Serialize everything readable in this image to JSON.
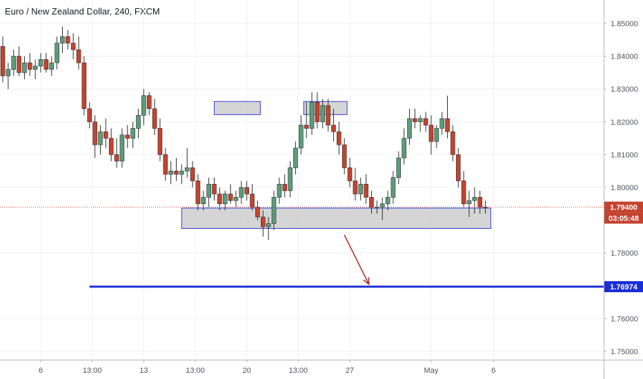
{
  "title": "Euro / New Zealand Dollar, 240, FXCM",
  "colors": {
    "up": "#5b9c7a",
    "down": "#c4432f",
    "grid": "#eef0f3",
    "axis_text": "#50535e",
    "box_stroke": "#2f3bd0",
    "box_fill": "#c7c7c7",
    "target_line": "#1b2ed6",
    "price_line": "#c4432f",
    "arrow": "#a52a1e"
  },
  "chart_data": {
    "type": "candlestick",
    "title": "Euro / New Zealand Dollar, 240, FXCM",
    "ylim": [
      1.7475,
      1.8565
    ],
    "y_ticks": [
      "1.85000",
      "1.84000",
      "1.83000",
      "1.82000",
      "1.81000",
      "1.80000",
      "1.78000",
      "1.76000",
      "1.75000"
    ],
    "y_tick_values": [
      1.85,
      1.84,
      1.83,
      1.82,
      1.81,
      1.8,
      1.78,
      1.76,
      1.75
    ],
    "x_ticks": [
      "6",
      "13:00",
      "13",
      "13:00",
      "20",
      "13:00",
      "27",
      "May",
      "6"
    ],
    "x_tick_bars": [
      14,
      33,
      52,
      71,
      90,
      109,
      128,
      158,
      181
    ],
    "bar_count": 200,
    "grid": true,
    "current_price": "1.79400",
    "current_price_value": 1.794,
    "countdown": "03:05:48",
    "target_level": "1.76974",
    "target_value": 1.76974,
    "candles": [
      [
        1.843,
        1.846,
        1.832,
        1.834
      ],
      [
        1.834,
        1.838,
        1.83,
        1.836
      ],
      [
        1.836,
        1.842,
        1.834,
        1.84
      ],
      [
        1.84,
        1.843,
        1.834,
        1.835
      ],
      [
        1.835,
        1.84,
        1.833,
        1.838
      ],
      [
        1.838,
        1.841,
        1.834,
        1.836
      ],
      [
        1.836,
        1.839,
        1.833,
        1.837
      ],
      [
        1.837,
        1.841,
        1.835,
        1.839
      ],
      [
        1.839,
        1.841,
        1.835,
        1.836
      ],
      [
        1.836,
        1.84,
        1.834,
        1.838
      ],
      [
        1.838,
        1.846,
        1.836,
        1.844
      ],
      [
        1.844,
        1.849,
        1.841,
        1.846
      ],
      [
        1.846,
        1.848,
        1.842,
        1.844
      ],
      [
        1.844,
        1.847,
        1.839,
        1.842
      ],
      [
        1.842,
        1.846,
        1.836,
        1.838
      ],
      [
        1.838,
        1.84,
        1.822,
        1.824
      ],
      [
        1.824,
        1.826,
        1.818,
        1.82
      ],
      [
        1.82,
        1.822,
        1.809,
        1.813
      ],
      [
        1.813,
        1.819,
        1.81,
        1.817
      ],
      [
        1.817,
        1.821,
        1.812,
        1.815
      ],
      [
        1.815,
        1.818,
        1.808,
        1.81
      ],
      [
        1.81,
        1.815,
        1.806,
        1.808
      ],
      [
        1.808,
        1.818,
        1.806,
        1.816
      ],
      [
        1.816,
        1.819,
        1.812,
        1.815
      ],
      [
        1.815,
        1.82,
        1.812,
        1.818
      ],
      [
        1.818,
        1.824,
        1.815,
        1.822
      ],
      [
        1.822,
        1.83,
        1.819,
        1.828
      ],
      [
        1.828,
        1.829,
        1.822,
        1.824
      ],
      [
        1.824,
        1.827,
        1.816,
        1.818
      ],
      [
        1.818,
        1.821,
        1.808,
        1.81
      ],
      [
        1.81,
        1.812,
        1.802,
        1.804
      ],
      [
        1.804,
        1.808,
        1.801,
        1.805
      ],
      [
        1.805,
        1.809,
        1.802,
        1.804
      ],
      [
        1.804,
        1.807,
        1.801,
        1.805
      ],
      [
        1.805,
        1.812,
        1.803,
        1.806
      ],
      [
        1.806,
        1.808,
        1.8,
        1.802
      ],
      [
        1.802,
        1.804,
        1.793,
        1.795
      ],
      [
        1.795,
        1.799,
        1.793,
        1.797
      ],
      [
        1.797,
        1.803,
        1.794,
        1.801
      ],
      [
        1.801,
        1.803,
        1.796,
        1.798
      ],
      [
        1.798,
        1.8,
        1.793,
        1.795
      ],
      [
        1.795,
        1.799,
        1.793,
        1.798
      ],
      [
        1.798,
        1.801,
        1.795,
        1.796
      ],
      [
        1.796,
        1.799,
        1.794,
        1.797
      ],
      [
        1.797,
        1.802,
        1.795,
        1.8
      ],
      [
        1.8,
        1.802,
        1.796,
        1.798
      ],
      [
        1.798,
        1.801,
        1.793,
        1.794
      ],
      [
        1.794,
        1.796,
        1.79,
        1.791
      ],
      [
        1.791,
        1.793,
        1.785,
        1.788
      ],
      [
        1.788,
        1.791,
        1.784,
        1.789
      ],
      [
        1.789,
        1.799,
        1.787,
        1.797
      ],
      [
        1.797,
        1.803,
        1.795,
        1.801
      ],
      [
        1.801,
        1.804,
        1.797,
        1.799
      ],
      [
        1.799,
        1.808,
        1.797,
        1.806
      ],
      [
        1.806,
        1.814,
        1.804,
        1.812
      ],
      [
        1.812,
        1.822,
        1.81,
        1.819
      ],
      [
        1.819,
        1.826,
        1.815,
        1.818
      ],
      [
        1.818,
        1.829,
        1.816,
        1.826
      ],
      [
        1.826,
        1.829,
        1.818,
        1.82
      ],
      [
        1.82,
        1.827,
        1.818,
        1.825
      ],
      [
        1.825,
        1.827,
        1.817,
        1.819
      ],
      [
        1.819,
        1.824,
        1.814,
        1.817
      ],
      [
        1.817,
        1.82,
        1.81,
        1.813
      ],
      [
        1.813,
        1.815,
        1.804,
        1.806
      ],
      [
        1.806,
        1.809,
        1.8,
        1.802
      ],
      [
        1.802,
        1.806,
        1.796,
        1.798
      ],
      [
        1.798,
        1.803,
        1.796,
        1.801
      ],
      [
        1.801,
        1.804,
        1.795,
        1.797
      ],
      [
        1.797,
        1.799,
        1.792,
        1.794
      ],
      [
        1.794,
        1.796,
        1.792,
        1.794
      ],
      [
        1.794,
        1.797,
        1.79,
        1.795
      ],
      [
        1.795,
        1.799,
        1.793,
        1.797
      ],
      [
        1.797,
        1.805,
        1.795,
        1.803
      ],
      [
        1.803,
        1.811,
        1.801,
        1.809
      ],
      [
        1.809,
        1.818,
        1.807,
        1.815
      ],
      [
        1.815,
        1.824,
        1.813,
        1.821
      ],
      [
        1.821,
        1.824,
        1.818,
        1.82
      ],
      [
        1.82,
        1.822,
        1.817,
        1.821
      ],
      [
        1.821,
        1.823,
        1.817,
        1.819
      ],
      [
        1.819,
        1.822,
        1.81,
        1.814
      ],
      [
        1.814,
        1.819,
        1.812,
        1.818
      ],
      [
        1.818,
        1.823,
        1.816,
        1.821
      ],
      [
        1.821,
        1.828,
        1.815,
        1.817
      ],
      [
        1.817,
        1.819,
        1.808,
        1.81
      ],
      [
        1.81,
        1.812,
        1.8,
        1.802
      ],
      [
        1.802,
        1.805,
        1.794,
        1.795
      ],
      [
        1.795,
        1.799,
        1.791,
        1.796
      ],
      [
        1.796,
        1.8,
        1.792,
        1.797
      ],
      [
        1.797,
        1.799,
        1.792,
        1.794
      ],
      [
        1.794,
        1.796,
        1.792,
        1.794
      ]
    ],
    "candle_start_bar": 0,
    "candle_bar_step": 2,
    "zones": [
      {
        "bars": [
          78,
          95
        ],
        "y": [
          1.8222,
          1.8262
        ]
      },
      {
        "bars": [
          111,
          127
        ],
        "y": [
          1.8222,
          1.8262
        ]
      },
      {
        "bars": [
          66,
          180
        ],
        "y": [
          1.7875,
          1.7937
        ]
      }
    ],
    "target_line_bars": [
      32,
      198
    ],
    "arrow": {
      "from": [
        126,
        1.7855
      ],
      "to": [
        135,
        1.7705
      ]
    }
  }
}
